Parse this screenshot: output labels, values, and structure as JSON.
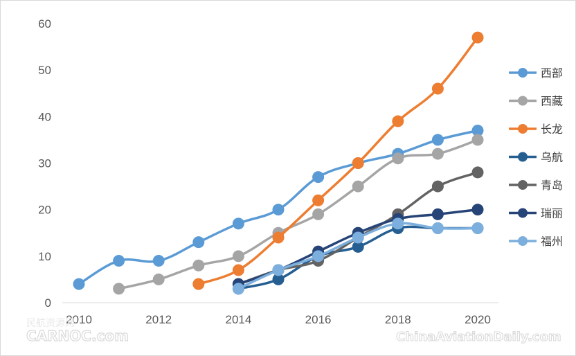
{
  "chart_data": {
    "type": "line",
    "x": [
      2010,
      2011,
      2012,
      2013,
      2014,
      2015,
      2016,
      2017,
      2018,
      2019,
      2020
    ],
    "xticks": [
      "2010",
      "2012",
      "2014",
      "2016",
      "2018",
      "2020"
    ],
    "yticks": [
      "0",
      "10",
      "20",
      "30",
      "40",
      "50",
      "60"
    ],
    "ylim": [
      0,
      60
    ],
    "xlim": [
      2010,
      2020
    ],
    "grid": false,
    "legend_position": "right",
    "series": [
      {
        "name": "西部",
        "color": "#5B9BD5",
        "values": [
          4,
          9,
          9,
          13,
          17,
          20,
          27,
          30,
          32,
          35,
          37
        ]
      },
      {
        "name": "西藏",
        "color": "#A5A5A5",
        "values": [
          null,
          3,
          5,
          8,
          10,
          15,
          19,
          25,
          31,
          32,
          35
        ]
      },
      {
        "name": "长龙",
        "color": "#ED7D31",
        "values": [
          null,
          null,
          null,
          4,
          7,
          14,
          22,
          30,
          39,
          46,
          57
        ]
      },
      {
        "name": "乌航",
        "color": "#255E91",
        "values": [
          null,
          null,
          null,
          null,
          3,
          5,
          10,
          12,
          16,
          16,
          16
        ]
      },
      {
        "name": "青岛",
        "color": "#636363",
        "values": [
          null,
          null,
          null,
          null,
          4,
          7,
          9,
          14,
          19,
          25,
          28
        ]
      },
      {
        "name": "瑞丽",
        "color": "#264478",
        "values": [
          null,
          null,
          null,
          null,
          4,
          7,
          11,
          15,
          18,
          19,
          20
        ]
      },
      {
        "name": "福州",
        "color": "#7CAFDD",
        "values": [
          null,
          null,
          null,
          null,
          3,
          7,
          10,
          14,
          17,
          16,
          16
        ]
      }
    ]
  },
  "watermarks": {
    "left_cn": "民航资源网",
    "left_en": "CARNOC.com",
    "right_en": "ChinaAviationDaily.com"
  }
}
